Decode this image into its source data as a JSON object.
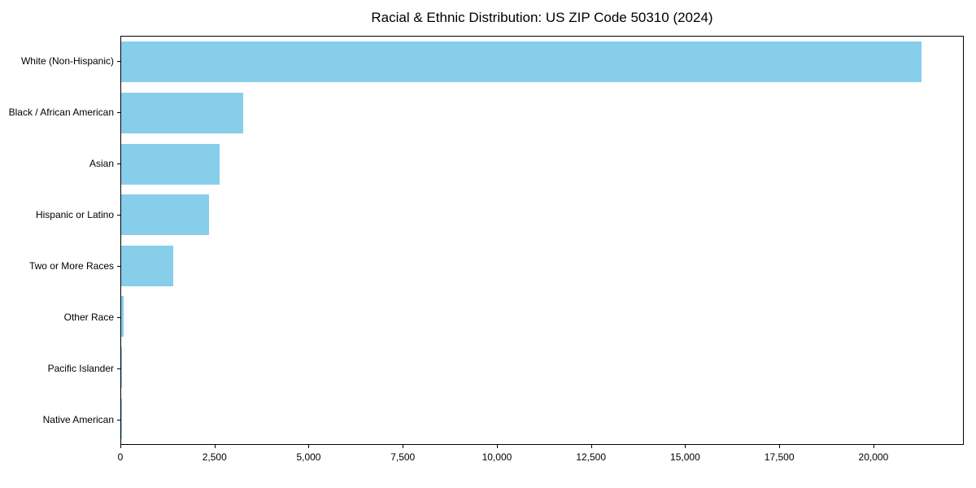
{
  "chart_data": {
    "type": "bar",
    "orientation": "horizontal",
    "title": "Racial & Ethnic Distribution: US ZIP Code 50310 (2024)",
    "categories": [
      "White (Non-Hispanic)",
      "Black / African American",
      "Asian",
      "Hispanic or Latino",
      "Two or More Races",
      "Other Race",
      "Pacific Islander",
      "Native American"
    ],
    "values": [
      21300,
      3250,
      2620,
      2340,
      1390,
      65,
      20,
      10
    ],
    "xlabel": "",
    "ylabel": "",
    "xlim": [
      0,
      22400
    ],
    "x_ticks": [
      {
        "value": 0,
        "label": "0"
      },
      {
        "value": 2500,
        "label": "2,500"
      },
      {
        "value": 5000,
        "label": "5,000"
      },
      {
        "value": 7500,
        "label": "7,500"
      },
      {
        "value": 10000,
        "label": "10,000"
      },
      {
        "value": 12500,
        "label": "12,500"
      },
      {
        "value": 15000,
        "label": "15,000"
      },
      {
        "value": 17500,
        "label": "17,500"
      },
      {
        "value": 20000,
        "label": "20,000"
      }
    ],
    "bar_color": "#87CEEB",
    "grid": false,
    "legend": false,
    "background_color": "#ffffff",
    "spine_color": "#000000"
  }
}
